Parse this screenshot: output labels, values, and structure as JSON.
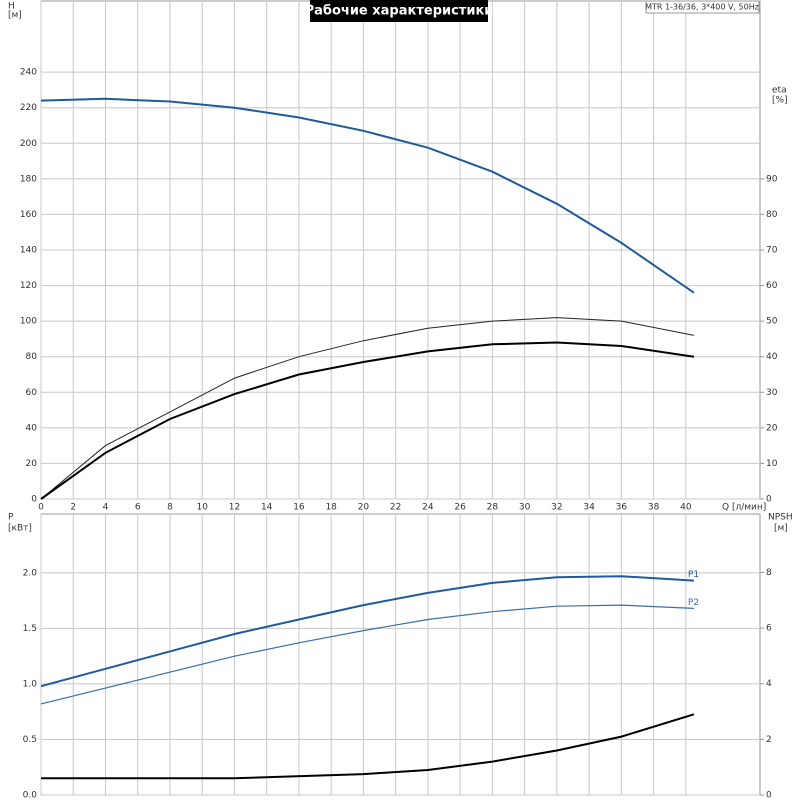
{
  "chart_data": [
    {
      "type": "line",
      "title": "Рабочие характеристики",
      "legend_text": "MTR 1-36/36, 3*400 V, 50Hz",
      "ylabel": "H",
      "ylabel_unit": "[м]",
      "y2label": "eta",
      "y2label_unit": "[%]",
      "xlabel": "Q [л/мин]",
      "xlim": [
        0,
        44.6
      ],
      "xticks": [
        0,
        2,
        4,
        6,
        8,
        10,
        12,
        14,
        16,
        18,
        20,
        22,
        24,
        26,
        28,
        30,
        32,
        34,
        36,
        38,
        40
      ],
      "xtick_labels": true,
      "ylim": [
        0,
        280
      ],
      "yticks": [
        0,
        20,
        40,
        60,
        80,
        100,
        120,
        140,
        160,
        180,
        200,
        220,
        240
      ],
      "y2lim": [
        0,
        140
      ],
      "y2ticks": [
        0,
        10,
        20,
        30,
        40,
        50,
        60,
        70,
        80,
        90
      ],
      "grid": true,
      "series": [
        {
          "color": "#1f5a9a",
          "width": 2,
          "axis": "y",
          "x": [
            0,
            4,
            8,
            12,
            16,
            20,
            24,
            28,
            32,
            36,
            40.5
          ],
          "values": [
            224,
            225,
            223.5,
            220,
            214.5,
            207,
            197.5,
            184,
            166,
            144,
            116
          ]
        },
        {
          "color": "#222222",
          "width": 1,
          "axis": "y2",
          "x": [
            0,
            4,
            8,
            12,
            16,
            20,
            24,
            28,
            32,
            36,
            40.5
          ],
          "values": [
            0,
            15,
            24.5,
            34,
            40,
            44.5,
            48,
            50,
            51,
            50,
            46
          ]
        },
        {
          "color": "#000000",
          "width": 2,
          "axis": "y2",
          "x": [
            0,
            4,
            8,
            12,
            16,
            20,
            24,
            28,
            32,
            36,
            40.5
          ],
          "values": [
            0,
            13,
            22.5,
            29.5,
            35,
            38.5,
            41.5,
            43.5,
            44,
            43,
            40
          ]
        }
      ]
    },
    {
      "type": "line",
      "ylabel": "P",
      "ylabel_unit": "[кВт]",
      "y2label": "NPSH",
      "y2label_unit": "[м]",
      "xlim": [
        0,
        44.6
      ],
      "xticks": [
        0,
        2,
        4,
        6,
        8,
        10,
        12,
        14,
        16,
        18,
        20,
        22,
        24,
        26,
        28,
        30,
        32,
        34,
        36,
        38,
        40
      ],
      "xtick_labels": false,
      "ylim": [
        0,
        2.53
      ],
      "yticks": [
        {
          "value": 0,
          "label": "0.0"
        },
        0.5,
        {
          "value": 1,
          "label": "1.0"
        },
        1.5,
        {
          "value": 2,
          "label": "2.0"
        }
      ],
      "y2lim": [
        0,
        10.1
      ],
      "y2ticks": [
        0,
        2,
        4,
        6,
        8
      ],
      "grid": true,
      "series": [
        {
          "name": "P1",
          "color": "#1f5a9a",
          "width": 2,
          "axis": "y",
          "x": [
            0,
            12,
            16,
            20,
            24,
            28,
            32,
            36,
            40.5
          ],
          "values": [
            0.98,
            1.45,
            1.58,
            1.71,
            1.82,
            1.91,
            1.96,
            1.97,
            1.93
          ]
        },
        {
          "name": "P2",
          "color": "#3a6ea8",
          "width": 1.2,
          "axis": "y",
          "x": [
            0,
            12,
            16,
            20,
            24,
            28,
            32,
            36,
            40.5
          ],
          "values": [
            0.82,
            1.25,
            1.37,
            1.48,
            1.58,
            1.65,
            1.7,
            1.71,
            1.68
          ]
        },
        {
          "color": "#000000",
          "width": 2,
          "axis": "y2",
          "x": [
            0,
            12,
            20,
            24,
            28,
            32,
            36,
            40.5
          ],
          "values": [
            0.6,
            0.6,
            0.75,
            0.9,
            1.2,
            1.6,
            2.1,
            2.9
          ]
        }
      ]
    }
  ]
}
